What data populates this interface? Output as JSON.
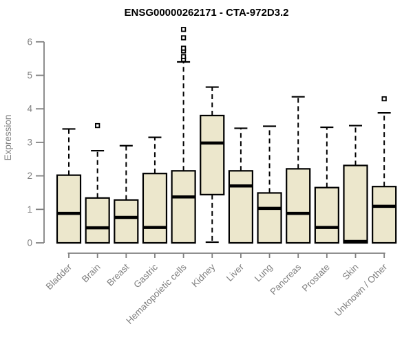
{
  "chart_data": {
    "type": "boxplot",
    "title": "ENSG00000262171 - CTA-972D3.2",
    "xlabel": "",
    "ylabel": "Expression",
    "ylim": [
      0,
      6.4
    ],
    "yticks": [
      0,
      1,
      2,
      3,
      4,
      5,
      6
    ],
    "grid": false,
    "legend": "none",
    "categories": [
      "Bladder",
      "Brain",
      "Breast",
      "Gastric",
      "Hematopoietic cells",
      "Kidney",
      "Liver",
      "Lung",
      "Pancreas",
      "Prostate",
      "Skin",
      "Unknown / Other"
    ],
    "boxes": [
      {
        "category": "Bladder",
        "whisker_low": 0,
        "q1": 0,
        "median": 0.88,
        "q3": 2.02,
        "whisker_high": 3.4,
        "outliers": []
      },
      {
        "category": "Brain",
        "whisker_low": 0,
        "q1": 0,
        "median": 0.45,
        "q3": 1.34,
        "whisker_high": 2.75,
        "outliers": [
          3.5
        ]
      },
      {
        "category": "Breast",
        "whisker_low": 0,
        "q1": 0,
        "median": 0.76,
        "q3": 1.28,
        "whisker_high": 2.9,
        "outliers": []
      },
      {
        "category": "Gastric",
        "whisker_low": 0,
        "q1": 0,
        "median": 0.46,
        "q3": 2.07,
        "whisker_high": 3.15,
        "outliers": []
      },
      {
        "category": "Hematopoietic cells",
        "whisker_low": 0,
        "q1": 0,
        "median": 1.37,
        "q3": 2.15,
        "whisker_high": 5.4,
        "outliers": [
          5.47,
          5.56,
          5.73,
          5.81,
          6.12,
          6.37
        ]
      },
      {
        "category": "Kidney",
        "whisker_low": 0.02,
        "q1": 1.44,
        "median": 2.98,
        "q3": 3.8,
        "whisker_high": 4.65,
        "outliers": []
      },
      {
        "category": "Liver",
        "whisker_low": 0,
        "q1": 0,
        "median": 1.7,
        "q3": 2.15,
        "whisker_high": 3.42,
        "outliers": []
      },
      {
        "category": "Lung",
        "whisker_low": 0,
        "q1": 0,
        "median": 1.03,
        "q3": 1.49,
        "whisker_high": 3.48,
        "outliers": []
      },
      {
        "category": "Pancreas",
        "whisker_low": 0,
        "q1": 0,
        "median": 0.88,
        "q3": 2.21,
        "whisker_high": 4.36,
        "outliers": []
      },
      {
        "category": "Prostate",
        "whisker_low": 0,
        "q1": 0,
        "median": 0.46,
        "q3": 1.65,
        "whisker_high": 3.45,
        "outliers": []
      },
      {
        "category": "Skin",
        "whisker_low": 0,
        "q1": 0,
        "median": 0.04,
        "q3": 2.31,
        "whisker_high": 3.5,
        "outliers": []
      },
      {
        "category": "Unknown / Other",
        "whisker_low": 0,
        "q1": 0,
        "median": 1.09,
        "q3": 1.68,
        "whisker_high": 3.88,
        "outliers": [
          4.3
        ]
      }
    ],
    "colors": {
      "box_fill": "#ECE7CC",
      "box_border": "#000000",
      "median": "#000000",
      "whisker": "#000000",
      "axis": "#808080",
      "tick_label": "#808080",
      "title": "#000000",
      "background": "#ffffff"
    }
  }
}
